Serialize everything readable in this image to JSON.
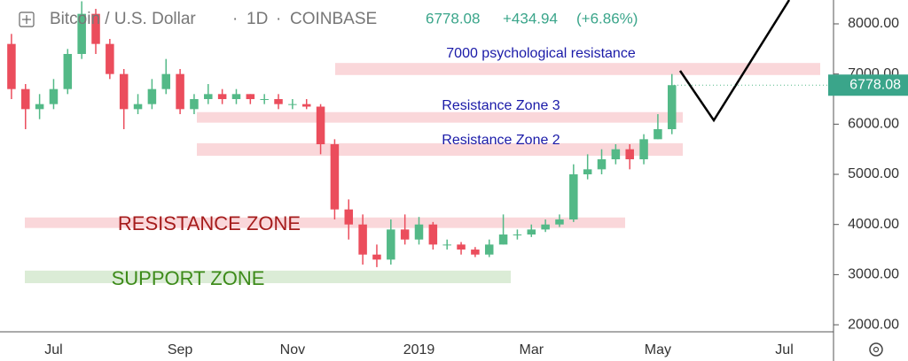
{
  "chart_data": {
    "type": "candlestick",
    "header": {
      "symbol": "Bitcoin / U.S. Dollar",
      "interval": "1D",
      "exchange": "COINBASE",
      "price": "6778.08",
      "change": "+434.94",
      "change_pct": "(+6.86%)"
    },
    "last_price": 6778.08,
    "categories": [
      null,
      null,
      null,
      "Jul",
      null,
      null,
      null,
      null,
      null,
      null,
      null,
      null,
      "Sep",
      null,
      null,
      null,
      null,
      null,
      null,
      null,
      "Nov",
      null,
      null,
      null,
      null,
      null,
      null,
      null,
      null,
      "2019",
      null,
      null,
      null,
      null,
      null,
      null,
      null,
      "Mar",
      null,
      null,
      null,
      null,
      null,
      null,
      null,
      null,
      "May",
      null,
      null,
      null,
      null,
      null,
      null,
      null,
      null,
      "Jul",
      null,
      null,
      null
    ],
    "open": [
      7600,
      6700,
      6300,
      6400,
      6700,
      7400,
      8200,
      7600,
      7000,
      6300,
      6400,
      6700,
      7000,
      6300,
      6500,
      6600,
      6500,
      6600,
      6500,
      6500,
      6400,
      6400,
      6350,
      5600,
      4300,
      4000,
      3400,
      3300,
      3900,
      3700,
      4000,
      3600,
      3600,
      3500,
      3400,
      3600,
      3800,
      3800,
      3900,
      4000,
      4100,
      5000,
      5100,
      5300,
      5500,
      5300,
      5700,
      5900,
      null,
      null,
      null,
      null,
      null,
      null,
      null,
      null,
      null,
      null,
      null
    ],
    "high": [
      7800,
      6800,
      6600,
      6900,
      7500,
      8450,
      8300,
      7700,
      7100,
      6600,
      6900,
      7300,
      7100,
      6600,
      6800,
      6700,
      6700,
      6600,
      6600,
      6600,
      6500,
      6500,
      6400,
      5700,
      4500,
      4200,
      3600,
      4100,
      4200,
      4150,
      4050,
      3700,
      3650,
      3550,
      3700,
      4200,
      3900,
      4000,
      4100,
      4200,
      5200,
      5400,
      5500,
      5600,
      5600,
      5800,
      6200,
      7000,
      null,
      null,
      null,
      null,
      null,
      null,
      null,
      null,
      null,
      null,
      null
    ],
    "low": [
      6500,
      5900,
      6100,
      6300,
      6600,
      7300,
      7400,
      6900,
      5900,
      6200,
      6300,
      6600,
      6200,
      6200,
      6400,
      6400,
      6400,
      6400,
      6400,
      6300,
      6300,
      6300,
      5400,
      4100,
      3700,
      3200,
      3150,
      3200,
      3600,
      3600,
      3500,
      3500,
      3400,
      3350,
      3350,
      3600,
      3700,
      3750,
      3850,
      3950,
      4050,
      4900,
      5000,
      5200,
      5100,
      5200,
      5700,
      5800,
      null,
      null,
      null,
      null,
      null,
      null,
      null,
      null,
      null,
      null,
      null
    ],
    "close": [
      6700,
      6300,
      6400,
      6700,
      7400,
      8200,
      7600,
      7000,
      6300,
      6400,
      6700,
      7000,
      6300,
      6500,
      6600,
      6500,
      6600,
      6500,
      6500,
      6400,
      6400,
      6350,
      5600,
      4300,
      4000,
      3400,
      3300,
      3900,
      3700,
      4000,
      3600,
      3600,
      3500,
      3400,
      3600,
      3800,
      3800,
      3900,
      4000,
      4100,
      5000,
      5100,
      5300,
      5500,
      5300,
      5700,
      5900,
      6778,
      null,
      null,
      null,
      null,
      null,
      null,
      null,
      null,
      null,
      null,
      null
    ],
    "up_color": "#53b987",
    "down_color": "#eb4d5c",
    "ylim": [
      1860,
      8476
    ],
    "yticks": [
      {
        "value": 2000,
        "label": "2000.00"
      },
      {
        "value": 3000,
        "label": "3000.00"
      },
      {
        "value": 4000,
        "label": "4000.00"
      },
      {
        "value": 5000,
        "label": "5000.00"
      },
      {
        "value": 6000,
        "label": "6000.00"
      },
      {
        "value": 7000,
        "label": "7000.00"
      },
      {
        "value": 8000,
        "label": "8000.00"
      }
    ],
    "zones": [
      {
        "label": "7000 psychological resistance",
        "ylim": [
          6980,
          7220
        ],
        "color": "#f8c9cd",
        "text_color": "#1a1aa8"
      },
      {
        "label": "Resistance Zone 3",
        "ylim": [
          6030,
          6240
        ],
        "color": "#f8c9cd",
        "text_color": "#1a1aa8"
      },
      {
        "label": "Resistance Zone 2",
        "ylim": [
          5370,
          5620
        ],
        "color": "#f8c9cd",
        "text_color": "#1a1aa8"
      },
      {
        "label": "RESISTANCE ZONE",
        "ylim": [
          3930,
          4140
        ],
        "color": "#f8c9cd",
        "text_color": "#a51c1c"
      },
      {
        "label": "SUPPORT ZONE",
        "ylim": [
          2830,
          3080
        ],
        "color": "#cfe6c8",
        "text_color": "#3d8b1a"
      }
    ]
  }
}
